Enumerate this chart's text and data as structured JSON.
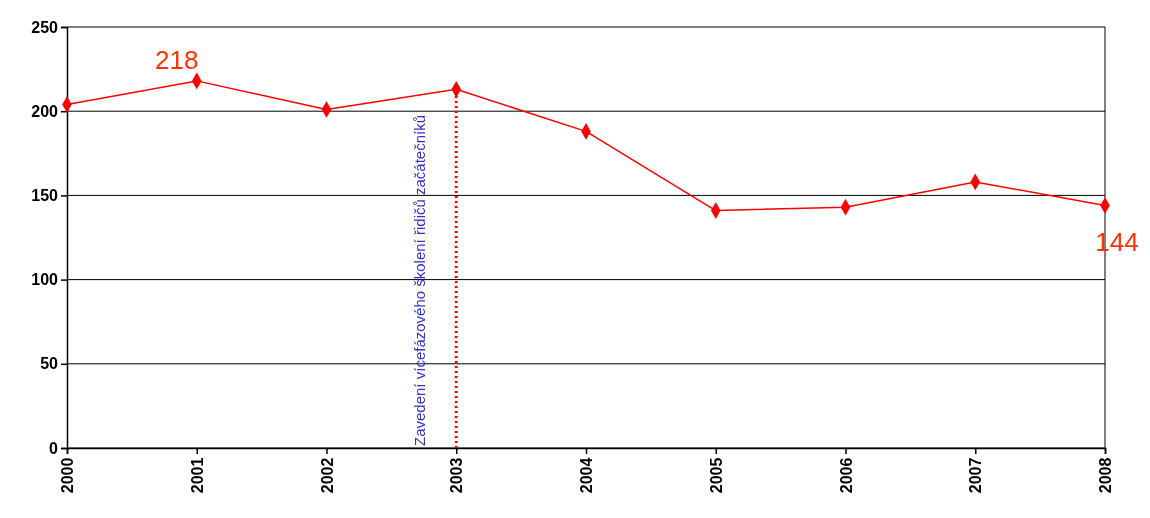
{
  "chart_data": {
    "type": "line",
    "x": [
      2000,
      2001,
      2002,
      2003,
      2004,
      2005,
      2006,
      2007,
      2008
    ],
    "series": [
      {
        "color": "#ff0000",
        "values": [
          204,
          218,
          201,
          213,
          188,
          141,
          143,
          158,
          144
        ],
        "value_labels": [
          null,
          "218",
          null,
          null,
          null,
          null,
          null,
          null,
          "144"
        ]
      }
    ],
    "xlim": [
      2000,
      2008
    ],
    "xticks": [
      2000,
      2001,
      2002,
      2003,
      2004,
      2005,
      2006,
      2007,
      2008
    ],
    "ylim": [
      0,
      250
    ],
    "yticks": [
      0,
      50,
      100,
      150,
      200,
      250
    ],
    "grid": "y",
    "marker": "diamond",
    "line_style": "solid",
    "ref_lines": [
      {
        "axis": "x",
        "value": 2003,
        "label": "Zavedení vícefázového školení řidičů začátečníků",
        "color": "#ff0000",
        "line_style": "dotted"
      }
    ]
  }
}
